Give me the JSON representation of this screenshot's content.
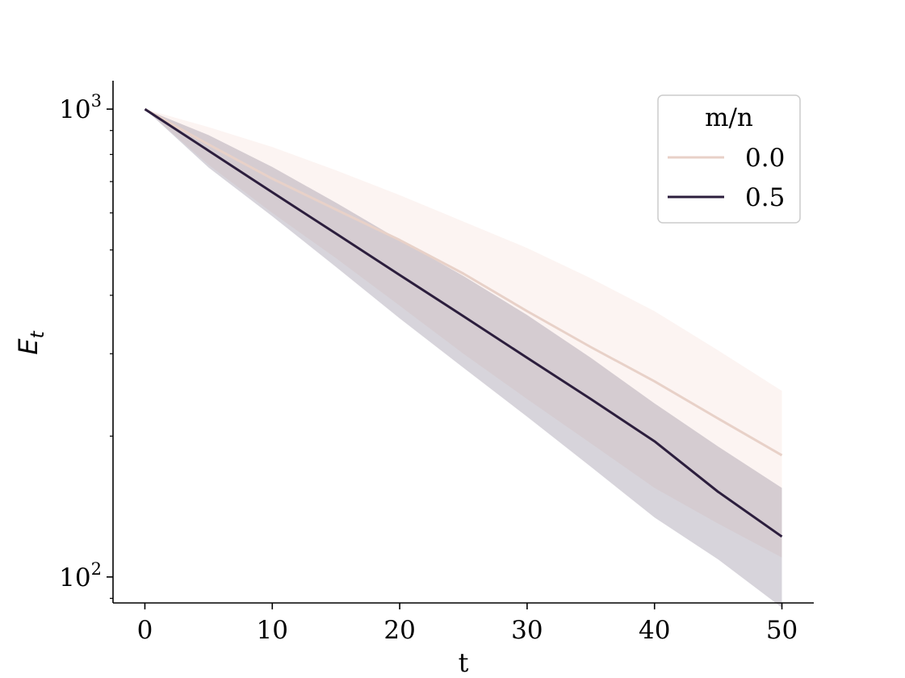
{
  "chart_data": {
    "type": "line",
    "xlabel": "t",
    "ylabel": "E",
    "ylabel_subscript": "t",
    "xlim": [
      -2.5,
      52.5
    ],
    "ylim": [
      88,
      1150
    ],
    "yscale": "log",
    "x_ticks": [
      0,
      10,
      20,
      30,
      40,
      50
    ],
    "x_tick_labels": [
      "0",
      "10",
      "20",
      "30",
      "40",
      "50"
    ],
    "y_ticks": [
      {
        "value": 1000,
        "base": "10",
        "exponent": "3"
      },
      {
        "value": 100,
        "base": "10",
        "exponent": "2"
      }
    ],
    "grid": false,
    "legend": {
      "title": "m/n",
      "placement": "top-right",
      "entries": [
        "0.0",
        "0.5"
      ]
    },
    "series": [
      {
        "name": "0.0",
        "color": "#e8d1c8",
        "band_color": "#f6dcd8",
        "x": [
          0,
          5,
          10,
          15,
          20,
          25,
          30,
          35,
          40,
          45,
          50
        ],
        "values": [
          1000,
          840,
          710,
          610,
          525,
          445,
          370,
          310,
          262,
          218,
          182
        ],
        "lower": [
          1000,
          760,
          600,
          480,
          380,
          300,
          240,
          193,
          155,
          130,
          110
        ],
        "upper": [
          1000,
          915,
          830,
          740,
          655,
          575,
          505,
          435,
          370,
          305,
          250
        ]
      },
      {
        "name": "0.5",
        "color": "#2c1e3d",
        "band_color": "#6f647f",
        "x": [
          0,
          5,
          10,
          15,
          20,
          25,
          30,
          35,
          40,
          45,
          50
        ],
        "values": [
          1000,
          815,
          664,
          542,
          442,
          361,
          294,
          240,
          195,
          152,
          122
        ],
        "lower": [
          1000,
          750,
          590,
          460,
          357,
          280,
          220,
          172,
          134,
          109,
          86
        ],
        "upper": [
          1000,
          880,
          752,
          631,
          525,
          440,
          363,
          294,
          235,
          190,
          155
        ]
      }
    ]
  }
}
